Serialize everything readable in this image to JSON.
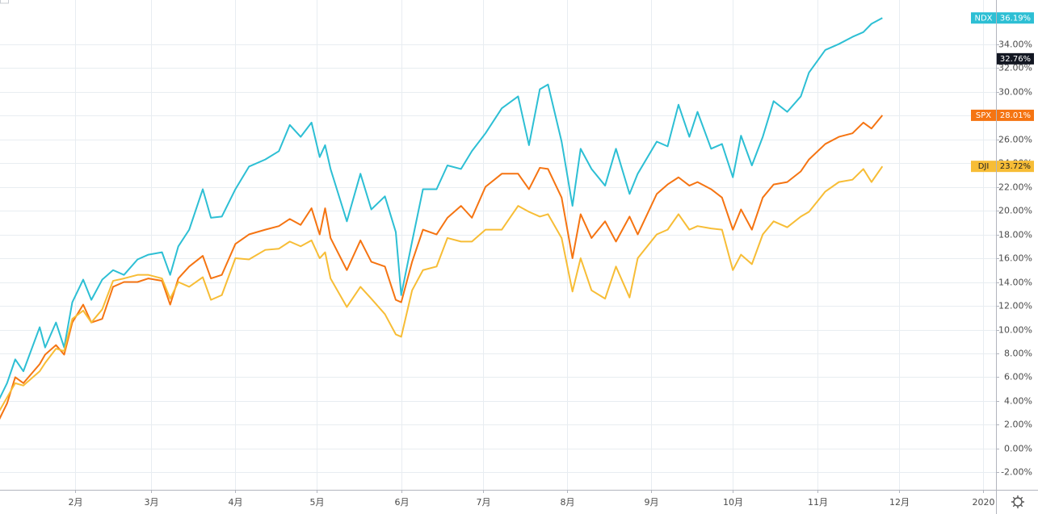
{
  "chart_data": {
    "type": "line",
    "x": [
      4,
      7,
      10,
      13,
      19,
      21,
      25,
      28,
      31,
      35,
      38,
      42,
      46,
      50,
      55,
      59,
      64,
      67,
      70,
      74,
      79,
      82,
      86,
      91,
      96,
      102,
      107,
      111,
      115,
      119,
      122,
      124,
      126,
      132,
      137,
      141,
      146,
      150,
      152,
      156,
      160,
      165,
      169,
      174,
      178,
      183,
      189,
      195,
      199,
      203,
      206,
      211,
      215,
      218,
      222,
      227,
      231,
      236,
      239,
      246,
      250,
      254,
      258,
      261,
      266,
      270,
      274,
      277,
      281,
      285,
      289,
      294,
      299,
      302,
      308,
      313,
      318,
      322,
      325,
      329
    ],
    "xlim": [
      4.4,
      370.8
    ],
    "xticks": [
      {
        "value": 32,
        "label": "2月"
      },
      {
        "value": 60,
        "label": "3月"
      },
      {
        "value": 91,
        "label": "4月"
      },
      {
        "value": 121,
        "label": "5月"
      },
      {
        "value": 152,
        "label": "6月"
      },
      {
        "value": 182,
        "label": "7月"
      },
      {
        "value": 213,
        "label": "8月"
      },
      {
        "value": 244,
        "label": "9月"
      },
      {
        "value": 274,
        "label": "10月"
      },
      {
        "value": 305,
        "label": "11月"
      },
      {
        "value": 335,
        "label": "12月"
      },
      {
        "value": 366,
        "label": "2020"
      }
    ],
    "ylim": [
      -3.46,
      37.7
    ],
    "yticks": [
      {
        "value": -2,
        "label": "-2.00%"
      },
      {
        "value": 0,
        "label": "0.00%"
      },
      {
        "value": 2,
        "label": "2.00%"
      },
      {
        "value": 4,
        "label": "4.00%"
      },
      {
        "value": 6,
        "label": "6.00%"
      },
      {
        "value": 8,
        "label": "8.00%"
      },
      {
        "value": 10,
        "label": "10.00%"
      },
      {
        "value": 12,
        "label": "12.00%"
      },
      {
        "value": 14,
        "label": "14.00%"
      },
      {
        "value": 16,
        "label": "16.00%"
      },
      {
        "value": 18,
        "label": "18.00%"
      },
      {
        "value": 20,
        "label": "20.00%"
      },
      {
        "value": 22,
        "label": "22.00%"
      },
      {
        "value": 24,
        "label": "24.00%"
      },
      {
        "value": 26,
        "label": "26.00%"
      },
      {
        "value": 28,
        "label": "28.00%"
      },
      {
        "value": 30,
        "label": "30.00%"
      },
      {
        "value": 32,
        "label": "32.00%"
      },
      {
        "value": 34,
        "label": "34.00%"
      }
    ],
    "grid": true,
    "price_marker": {
      "value": 32.76,
      "label": "32.76%"
    },
    "series": [
      {
        "name": "NDX",
        "color": "#2dbfd4",
        "text_color": "#ffffff",
        "values": [
          4.1,
          5.5,
          7.5,
          6.5,
          10.2,
          8.5,
          10.6,
          8.5,
          12.3,
          14.2,
          12.5,
          14.2,
          15.0,
          14.6,
          15.9,
          16.3,
          16.5,
          14.6,
          17.0,
          18.4,
          21.8,
          19.4,
          19.5,
          21.8,
          23.7,
          24.3,
          25.0,
          27.2,
          26.2,
          27.4,
          24.5,
          25.5,
          23.5,
          19.1,
          23.1,
          20.1,
          21.2,
          18.2,
          12.9,
          17.4,
          21.8,
          21.8,
          23.8,
          23.5,
          25.0,
          26.5,
          28.6,
          29.6,
          25.5,
          30.2,
          30.6,
          25.8,
          20.4,
          25.2,
          23.5,
          22.1,
          25.2,
          21.4,
          23.1,
          25.8,
          25.4,
          28.9,
          26.2,
          28.3,
          25.2,
          25.6,
          22.8,
          26.3,
          23.8,
          26.2,
          29.2,
          28.3,
          29.6,
          31.6,
          33.5,
          34.0,
          34.6,
          35.0,
          35.7,
          36.19
        ],
        "value_labels": [
          null,
          null,
          null,
          null,
          null,
          null,
          null,
          null,
          null,
          null,
          null,
          null,
          null,
          null,
          null,
          null,
          null,
          null,
          null,
          null,
          null,
          null,
          null,
          null,
          null,
          null,
          null,
          null,
          null,
          null,
          null,
          null,
          null,
          null,
          null,
          null,
          null,
          null,
          null,
          null,
          null,
          null,
          null,
          null,
          null,
          null,
          null,
          null,
          null,
          null,
          null,
          null,
          null,
          null,
          null,
          null,
          null,
          null,
          null,
          null,
          null,
          null,
          null,
          null,
          null,
          null,
          null,
          null,
          null,
          null,
          null,
          null,
          null,
          null,
          null,
          null,
          null,
          null,
          null,
          "36.19%"
        ]
      },
      {
        "name": "SPX",
        "color": "#f57412",
        "text_color": "#ffffff",
        "values": [
          2.4,
          3.8,
          6.0,
          5.5,
          7.1,
          7.9,
          8.7,
          7.9,
          10.6,
          12.1,
          10.6,
          10.9,
          13.6,
          14.0,
          14.0,
          14.3,
          14.1,
          12.1,
          14.3,
          15.3,
          16.2,
          14.3,
          14.6,
          17.2,
          18.0,
          18.4,
          18.7,
          19.3,
          18.8,
          20.2,
          18.0,
          20.2,
          17.7,
          15.0,
          17.5,
          15.7,
          15.3,
          12.5,
          12.3,
          15.7,
          18.4,
          18.0,
          19.4,
          20.4,
          19.4,
          22.0,
          23.1,
          23.1,
          21.8,
          23.6,
          23.5,
          21.1,
          16.0,
          19.7,
          17.7,
          19.1,
          17.4,
          19.5,
          18.0,
          21.4,
          22.2,
          22.8,
          22.1,
          22.4,
          21.8,
          21.1,
          18.4,
          20.1,
          18.4,
          21.1,
          22.2,
          22.4,
          23.3,
          24.3,
          25.6,
          26.2,
          26.5,
          27.4,
          26.9,
          28.01
        ],
        "value_labels": [
          null,
          null,
          null,
          null,
          null,
          null,
          null,
          null,
          null,
          null,
          null,
          null,
          null,
          null,
          null,
          null,
          null,
          null,
          null,
          null,
          null,
          null,
          null,
          null,
          null,
          null,
          null,
          null,
          null,
          null,
          null,
          null,
          null,
          null,
          null,
          null,
          null,
          null,
          null,
          null,
          null,
          null,
          null,
          null,
          null,
          null,
          null,
          null,
          null,
          null,
          null,
          null,
          null,
          null,
          null,
          null,
          null,
          null,
          null,
          null,
          null,
          null,
          null,
          null,
          null,
          null,
          null,
          null,
          null,
          null,
          null,
          null,
          null,
          null,
          null,
          null,
          null,
          null,
          null,
          "28.01%"
        ]
      },
      {
        "name": "DJI",
        "color": "#f7bd36",
        "text_color": "#222222",
        "values": [
          3.1,
          4.3,
          5.5,
          5.3,
          6.5,
          7.2,
          8.4,
          8.2,
          10.9,
          11.6,
          10.6,
          11.7,
          14.1,
          14.3,
          14.6,
          14.6,
          14.3,
          12.6,
          14.0,
          13.6,
          14.4,
          12.5,
          12.9,
          16.0,
          15.9,
          16.7,
          16.8,
          17.4,
          17.0,
          17.5,
          16.0,
          16.5,
          14.3,
          11.9,
          13.6,
          12.6,
          11.3,
          9.6,
          9.4,
          13.3,
          15.0,
          15.3,
          17.7,
          17.4,
          17.4,
          18.4,
          18.4,
          20.4,
          19.9,
          19.5,
          19.7,
          17.7,
          13.2,
          16.0,
          13.3,
          12.6,
          15.3,
          12.7,
          16.0,
          18.0,
          18.4,
          19.7,
          18.4,
          18.7,
          18.5,
          18.4,
          15.0,
          16.3,
          15.5,
          18.0,
          19.1,
          18.6,
          19.5,
          19.9,
          21.6,
          22.4,
          22.6,
          23.5,
          22.4,
          23.72
        ],
        "value_labels": [
          null,
          null,
          null,
          null,
          null,
          null,
          null,
          null,
          null,
          null,
          null,
          null,
          null,
          null,
          null,
          null,
          null,
          null,
          null,
          null,
          null,
          null,
          null,
          null,
          null,
          null,
          null,
          null,
          null,
          null,
          null,
          null,
          null,
          null,
          null,
          null,
          null,
          null,
          null,
          null,
          null,
          null,
          null,
          null,
          null,
          null,
          null,
          null,
          null,
          null,
          null,
          null,
          null,
          null,
          null,
          null,
          null,
          null,
          null,
          null,
          null,
          null,
          null,
          null,
          null,
          null,
          null,
          null,
          null,
          null,
          null,
          null,
          null,
          null,
          null,
          null,
          null,
          null,
          null,
          "23.72%"
        ]
      }
    ]
  }
}
